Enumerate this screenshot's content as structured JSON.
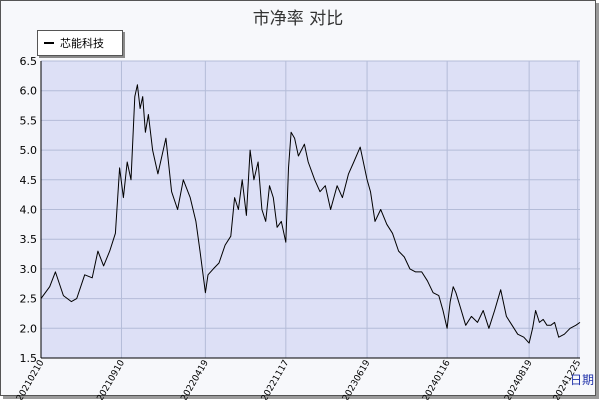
{
  "chart_data": {
    "type": "line",
    "title": "市净率  对比",
    "xlabel": "日期",
    "ylabel": "",
    "ylim": [
      1.5,
      6.5
    ],
    "yticks": [
      "1.5",
      "2.0",
      "2.5",
      "3.0",
      "3.5",
      "4.0",
      "4.5",
      "5.0",
      "5.5",
      "6.0",
      "6.5"
    ],
    "xlim": [
      "2021-02-10",
      "2024-12-31"
    ],
    "xticks": [
      "20210210",
      "20210910",
      "20220419",
      "20221117",
      "20230619",
      "20240116",
      "20240819",
      "20241225"
    ],
    "grid": true,
    "legend": "top-left",
    "colors": {
      "line": "#000000",
      "plot_bg": "#dde0f6",
      "grid": "#b4bcd8"
    },
    "series": [
      {
        "name": "芯能科技",
        "x": [
          "2021-02-10",
          "2021-03-05",
          "2021-03-20",
          "2021-04-10",
          "2021-05-01",
          "2021-05-15",
          "2021-06-05",
          "2021-06-25",
          "2021-07-10",
          "2021-07-25",
          "2021-08-10",
          "2021-08-25",
          "2021-09-05",
          "2021-09-15",
          "2021-09-25",
          "2021-10-05",
          "2021-10-15",
          "2021-10-22",
          "2021-10-29",
          "2021-11-05",
          "2021-11-12",
          "2021-11-20",
          "2021-12-01",
          "2021-12-15",
          "2022-01-05",
          "2022-01-20",
          "2022-02-05",
          "2022-02-20",
          "2022-03-10",
          "2022-03-25",
          "2022-04-05",
          "2022-04-19",
          "2022-04-26",
          "2022-05-10",
          "2022-05-25",
          "2022-06-10",
          "2022-06-25",
          "2022-07-05",
          "2022-07-15",
          "2022-07-25",
          "2022-08-05",
          "2022-08-15",
          "2022-08-25",
          "2022-09-05",
          "2022-09-15",
          "2022-09-25",
          "2022-10-05",
          "2022-10-15",
          "2022-10-25",
          "2022-11-05",
          "2022-11-17",
          "2022-11-24",
          "2022-12-01",
          "2022-12-10",
          "2022-12-20",
          "2023-01-05",
          "2023-01-15",
          "2023-02-01",
          "2023-02-15",
          "2023-03-01",
          "2023-03-15",
          "2023-04-01",
          "2023-04-15",
          "2023-05-01",
          "2023-05-15",
          "2023-06-01",
          "2023-06-19",
          "2023-06-28",
          "2023-07-10",
          "2023-07-25",
          "2023-08-10",
          "2023-08-25",
          "2023-09-10",
          "2023-09-25",
          "2023-10-10",
          "2023-10-25",
          "2023-11-10",
          "2023-11-25",
          "2023-12-10",
          "2023-12-25",
          "2024-01-05",
          "2024-01-16",
          "2024-01-24",
          "2024-02-01",
          "2024-02-08",
          "2024-02-20",
          "2024-03-05",
          "2024-03-20",
          "2024-04-05",
          "2024-04-20",
          "2024-05-05",
          "2024-05-20",
          "2024-06-05",
          "2024-06-20",
          "2024-07-05",
          "2024-07-20",
          "2024-08-05",
          "2024-08-19",
          "2024-08-28",
          "2024-09-05",
          "2024-09-15",
          "2024-09-25",
          "2024-10-05",
          "2024-10-15",
          "2024-10-25",
          "2024-11-05",
          "2024-11-20",
          "2024-12-05",
          "2024-12-20",
          "2024-12-31"
        ],
        "values": [
          2.5,
          2.7,
          2.95,
          2.55,
          2.45,
          2.5,
          2.9,
          2.85,
          3.3,
          3.05,
          3.3,
          3.6,
          4.7,
          4.2,
          4.8,
          4.5,
          5.9,
          6.1,
          5.7,
          5.9,
          5.3,
          5.6,
          5.0,
          4.6,
          5.2,
          4.3,
          4.0,
          4.5,
          4.2,
          3.8,
          3.3,
          2.6,
          2.9,
          3.0,
          3.1,
          3.4,
          3.55,
          4.2,
          4.0,
          4.5,
          3.9,
          5.0,
          4.5,
          4.8,
          4.0,
          3.8,
          4.4,
          4.2,
          3.7,
          3.8,
          3.45,
          4.7,
          5.3,
          5.2,
          4.9,
          5.1,
          4.8,
          4.5,
          4.3,
          4.4,
          4.0,
          4.4,
          4.2,
          4.6,
          4.8,
          5.05,
          4.5,
          4.3,
          3.8,
          4.0,
          3.75,
          3.6,
          3.3,
          3.2,
          3.0,
          2.95,
          2.95,
          2.8,
          2.6,
          2.55,
          2.3,
          2.0,
          2.45,
          2.7,
          2.6,
          2.35,
          2.05,
          2.2,
          2.1,
          2.3,
          2.0,
          2.3,
          2.65,
          2.2,
          2.05,
          1.9,
          1.85,
          1.75,
          2.0,
          2.3,
          2.1,
          2.15,
          2.05,
          2.05,
          2.1,
          1.85,
          1.9,
          2.0,
          2.05,
          2.1
        ]
      }
    ]
  }
}
